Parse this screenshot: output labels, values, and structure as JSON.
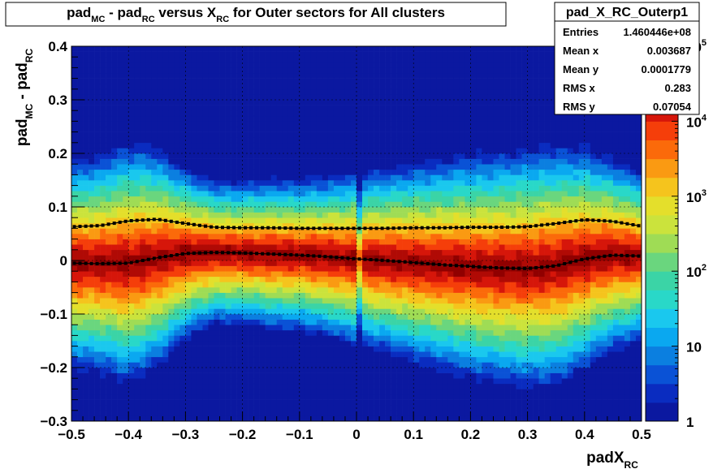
{
  "title": {
    "parts": [
      {
        "t": "pad",
        "s": "normal"
      },
      {
        "t": "MC",
        "s": "sub"
      },
      {
        "t": " - pad",
        "s": "normal"
      },
      {
        "t": "RC",
        "s": "sub"
      },
      {
        "t": " versus X",
        "s": "normal"
      },
      {
        "t": "RC",
        "s": "sub"
      },
      {
        "t": " for Outer sectors for All clusters",
        "s": "normal"
      }
    ]
  },
  "stats": {
    "name": "pad_X_RC_Outerp1",
    "rows": [
      {
        "label": "Entries",
        "value": "1.460446e+08"
      },
      {
        "label": "Mean x",
        "value": "0.003687"
      },
      {
        "label": "Mean y",
        "value": "0.0001779"
      },
      {
        "label": "RMS x",
        "value": "0.283"
      },
      {
        "label": "RMS y",
        "value": "0.07054"
      }
    ]
  },
  "colors": {
    "palette": [
      "#0b18a0",
      "#0a2cc0",
      "#0a52d6",
      "#0b7fe0",
      "#0aa8f0",
      "#1ac8ee",
      "#29d8c8",
      "#3bd4a6",
      "#6ad67e",
      "#9fdc55",
      "#cbe33c",
      "#e4df2b",
      "#f5c41d",
      "#fa9a12",
      "#fb6a0a",
      "#f53e0a",
      "#d6160a",
      "#b00a05",
      "#900000",
      "#800000"
    ],
    "points": "#000000",
    "frame": "#000000"
  },
  "chart_data": {
    "type": "heatmap",
    "title": "pad_MC - pad_RC versus X_RC for Outer sectors for All clusters",
    "xlabel": "padX_RC",
    "ylabel": "pad_MC - pad_RC",
    "xlim": [
      -0.5,
      0.5
    ],
    "ylim": [
      -0.3,
      0.4
    ],
    "zscale": "log",
    "zlim": [
      1,
      100000
    ],
    "x_ticks": [
      "-0.5",
      "-0.4",
      "-0.3",
      "-0.2",
      "-0.1",
      "0",
      "0.1",
      "0.2",
      "0.3",
      "0.4",
      "0.5"
    ],
    "y_ticks": [
      "-0.3",
      "-0.2",
      "-0.1",
      "0",
      "0.1",
      "0.2",
      "0.3",
      "0.4"
    ],
    "z_ticks": [
      {
        "base": "1",
        "exp": ""
      },
      {
        "base": "10",
        "exp": ""
      },
      {
        "base": "10",
        "exp": "2"
      },
      {
        "base": "10",
        "exp": "3"
      },
      {
        "base": "10",
        "exp": "4"
      },
      {
        "base": "10",
        "exp": "5"
      }
    ],
    "grid": true,
    "profile_mean": {
      "x": [
        -0.5,
        -0.45,
        -0.4,
        -0.35,
        -0.3,
        -0.25,
        -0.2,
        -0.15,
        -0.1,
        -0.05,
        0,
        0.05,
        0.1,
        0.15,
        0.2,
        0.25,
        0.3,
        0.35,
        0.4,
        0.45,
        0.5
      ],
      "y": [
        -0.005,
        -0.006,
        -0.005,
        0.005,
        0.013,
        0.015,
        0.014,
        0.012,
        0.01,
        0.007,
        0.003,
        0.0,
        -0.004,
        -0.008,
        -0.011,
        -0.014,
        -0.015,
        -0.01,
        0.003,
        0.01,
        0.008
      ]
    },
    "profile_upper": {
      "x": [
        -0.5,
        -0.45,
        -0.4,
        -0.35,
        -0.3,
        -0.25,
        -0.2,
        -0.15,
        -0.1,
        -0.05,
        0,
        0.05,
        0.1,
        0.15,
        0.2,
        0.25,
        0.3,
        0.35,
        0.4,
        0.45,
        0.5
      ],
      "y": [
        0.063,
        0.065,
        0.074,
        0.077,
        0.069,
        0.062,
        0.061,
        0.061,
        0.06,
        0.06,
        0.06,
        0.06,
        0.061,
        0.061,
        0.062,
        0.062,
        0.063,
        0.069,
        0.076,
        0.073,
        0.064
      ]
    }
  }
}
